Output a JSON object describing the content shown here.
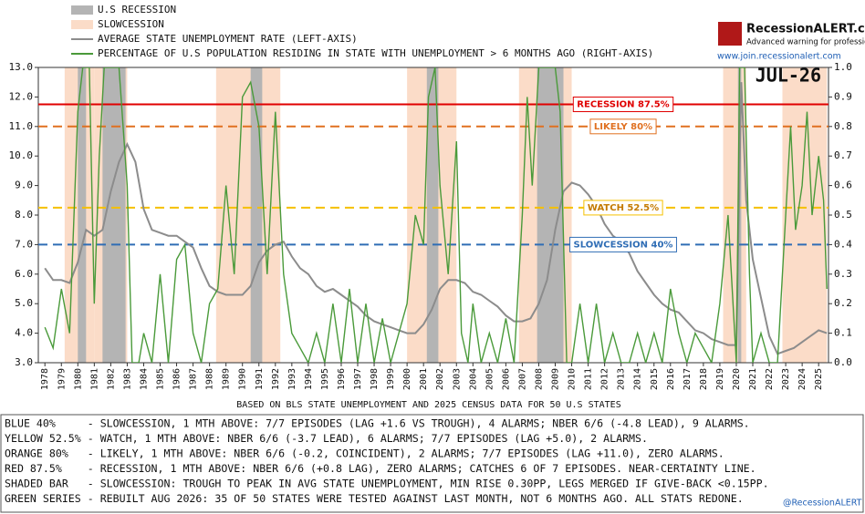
{
  "chart_data": {
    "type": "line",
    "legend": [
      "U.S RECESSION",
      "SLOWCESSION"
    ],
    "logo": {
      "title": "RecessionALERT.com",
      "subtitle": "Advanced warning for professionals",
      "url": "www.join.recessionalert.com"
    },
    "stamp": "JUL-26",
    "footnote": "BASED ON BLS STATE UNEMPLOYMENT AND 2025 CENSUS DATA FOR 50 U.S STATES",
    "notes": [
      "BLUE 40%     - SLOWCESSION, 1 MTH ABOVE: 7/7 EPISODES (LAG +1.6 VS TROUGH), 4 ALARMS; NBER 6/6 (-4.8 LEAD), 9 ALARMS.",
      "YELLOW 52.5% - WATCH, 1 MTH ABOVE: NBER 6/6 (-3.7 LEAD), 6 ALARMS; 7/7 EPISODES (LAG +5.0), 2 ALARMS.",
      "ORANGE 80%   - LIKELY, 1 MTH ABOVE: NBER 6/6 (-0.2, COINCIDENT), 2 ALARMS; 7/7 EPISODES (LAG +11.0), ZERO ALARMS.",
      "RED 87.5%    - RECESSION, 1 MTH ABOVE: NBER 6/6 (+0.8 LAG), ZERO ALARMS; CATCHES 6 OF 7 EPISODES. NEAR-CERTAINTY LINE.",
      "SHADED BAR   - SLOWCESSION: TROUGH TO PEAK IN AVG STATE UNEMPLOYMENT, MIN RISE 0.30PP, LEGS MERGED IF GIVE-BACK <0.15PP.",
      "GREEN SERIES - REBUILT AUG 2026: 35 OF 50 STATES WERE TESTED AGAINST LAST MONTH, NOT 6 MONTHS AGO. ALL STATS REDONE."
    ],
    "credit": "@RecessionALERT",
    "recession_color": "#b4b4b4",
    "slowcession_color": "#fbdcc8",
    "recessions": [
      [
        1980.0,
        1980.5
      ],
      [
        1981.5,
        1982.9
      ],
      [
        1990.5,
        1991.2
      ],
      [
        2001.2,
        2001.9
      ],
      [
        2007.9,
        2009.5
      ],
      [
        2020.1,
        2020.3
      ]
    ],
    "slowcessions": [
      [
        1979.2,
        1981.0
      ],
      [
        1981.0,
        1983.0
      ],
      [
        1988.4,
        1992.3
      ],
      [
        2000.0,
        2003.0
      ],
      [
        2006.8,
        2010.0
      ],
      [
        2019.2,
        2020.6
      ],
      [
        2022.8,
        2025.5
      ]
    ],
    "thresholds": [
      {
        "label": "RECESSION 87.5%",
        "value": 0.875,
        "color": "#e00000",
        "dash": false
      },
      {
        "label": "LIKELY 80%",
        "value": 0.8,
        "color": "#e07020",
        "dash": true
      },
      {
        "label": "WATCH 52.5%",
        "value": 0.525,
        "color": "#f5c000",
        "dash": true
      },
      {
        "label": "SLOWCESSION 40%",
        "value": 0.4,
        "color": "#2f6db5",
        "dash": true
      }
    ],
    "series": [
      {
        "name": "AVERAGE STATE UNEMPLOYMENT RATE (LEFT-AXIS)",
        "color": "#8c8c8c",
        "axis": "y",
        "x": [
          1978.0,
          1978.5,
          1979.0,
          1979.5,
          1980.0,
          1980.5,
          1981.0,
          1981.5,
          1982.0,
          1982.5,
          1983.0,
          1983.5,
          1984.0,
          1984.5,
          1985.0,
          1985.5,
          1986.0,
          1986.5,
          1987.0,
          1987.5,
          1988.0,
          1988.5,
          1989.0,
          1989.5,
          1990.0,
          1990.5,
          1991.0,
          1991.5,
          1992.0,
          1992.5,
          1993.0,
          1993.5,
          1994.0,
          1994.5,
          1995.0,
          1995.5,
          1996.0,
          1996.5,
          1997.0,
          1997.5,
          1998.0,
          1998.5,
          1999.0,
          1999.5,
          2000.0,
          2000.5,
          2001.0,
          2001.5,
          2002.0,
          2002.5,
          2003.0,
          2003.5,
          2004.0,
          2004.5,
          2005.0,
          2005.5,
          2006.0,
          2006.5,
          2007.0,
          2007.5,
          2008.0,
          2008.5,
          2009.0,
          2009.5,
          2010.0,
          2010.5,
          2011.0,
          2011.5,
          2012.0,
          2012.5,
          2013.0,
          2013.5,
          2014.0,
          2014.5,
          2015.0,
          2015.5,
          2016.0,
          2016.5,
          2017.0,
          2017.5,
          2018.0,
          2018.5,
          2019.0,
          2019.5,
          2020.0,
          2020.3,
          2020.6,
          2021.0,
          2021.5,
          2022.0,
          2022.5,
          2023.0,
          2023.5,
          2024.0,
          2024.5,
          2025.0,
          2025.5
        ],
        "values": [
          6.2,
          5.8,
          5.8,
          5.7,
          6.4,
          7.5,
          7.3,
          7.5,
          8.8,
          9.8,
          10.4,
          9.8,
          8.2,
          7.5,
          7.4,
          7.3,
          7.3,
          7.1,
          6.9,
          6.2,
          5.6,
          5.4,
          5.3,
          5.3,
          5.3,
          5.6,
          6.4,
          6.8,
          7.0,
          7.1,
          6.6,
          6.2,
          6.0,
          5.6,
          5.4,
          5.5,
          5.3,
          5.1,
          4.9,
          4.6,
          4.4,
          4.3,
          4.2,
          4.1,
          4.0,
          4.0,
          4.3,
          4.8,
          5.5,
          5.8,
          5.8,
          5.7,
          5.4,
          5.3,
          5.1,
          4.9,
          4.6,
          4.4,
          4.4,
          4.5,
          5.0,
          5.8,
          7.5,
          8.8,
          9.1,
          9.0,
          8.7,
          8.3,
          7.7,
          7.3,
          7.1,
          6.7,
          6.1,
          5.7,
          5.3,
          5.0,
          4.8,
          4.7,
          4.4,
          4.1,
          4.0,
          3.8,
          3.7,
          3.6,
          3.6,
          12.5,
          8.5,
          6.5,
          5.2,
          3.9,
          3.3,
          3.4,
          3.5,
          3.7,
          3.9,
          4.1,
          4.0
        ]
      },
      {
        "name": "PERCENTAGE OF U.S POPULATION RESIDING IN STATE WITH UNEMPLOYMENT > 6 MONTHS AGO (RIGHT-AXIS)",
        "color": "#4a9a3a",
        "axis": "y2",
        "x": [
          1978.0,
          1978.5,
          1979.0,
          1979.5,
          1980.0,
          1980.3,
          1980.7,
          1981.0,
          1981.3,
          1981.6,
          1982.0,
          1982.5,
          1983.0,
          1983.3,
          1983.7,
          1984.0,
          1984.5,
          1985.0,
          1985.5,
          1986.0,
          1986.5,
          1987.0,
          1987.5,
          1988.0,
          1988.5,
          1989.0,
          1989.5,
          1990.0,
          1990.5,
          1991.0,
          1991.5,
          1992.0,
          1992.5,
          1993.0,
          1993.5,
          1994.0,
          1994.5,
          1995.0,
          1995.5,
          1996.0,
          1996.5,
          1997.0,
          1997.5,
          1998.0,
          1998.5,
          1999.0,
          1999.5,
          2000.0,
          2000.5,
          2001.0,
          2001.3,
          2001.7,
          2002.0,
          2002.5,
          2003.0,
          2003.3,
          2003.7,
          2004.0,
          2004.5,
          2005.0,
          2005.5,
          2006.0,
          2006.5,
          2007.0,
          2007.3,
          2007.6,
          2008.0,
          2008.5,
          2009.0,
          2009.3,
          2009.7,
          2010.0,
          2010.5,
          2011.0,
          2011.5,
          2012.0,
          2012.5,
          2013.0,
          2013.5,
          2014.0,
          2014.5,
          2015.0,
          2015.5,
          2016.0,
          2016.5,
          2017.0,
          2017.5,
          2018.0,
          2018.5,
          2019.0,
          2019.5,
          2020.0,
          2020.2,
          2020.5,
          2020.8,
          2021.0,
          2021.5,
          2022.0,
          2022.5,
          2023.0,
          2023.3,
          2023.6,
          2024.0,
          2024.3,
          2024.6,
          2025.0,
          2025.3,
          2025.5
        ],
        "values": [
          0.12,
          0.05,
          0.25,
          0.1,
          0.85,
          1.0,
          1.0,
          0.2,
          0.7,
          1.0,
          1.0,
          1.0,
          0.6,
          0.0,
          0.0,
          0.1,
          0.0,
          0.3,
          0.0,
          0.35,
          0.4,
          0.1,
          0.0,
          0.2,
          0.25,
          0.6,
          0.3,
          0.9,
          0.95,
          0.8,
          0.3,
          0.85,
          0.3,
          0.1,
          0.05,
          0.0,
          0.1,
          0.0,
          0.2,
          0.0,
          0.25,
          0.0,
          0.2,
          0.0,
          0.15,
          0.0,
          0.1,
          0.2,
          0.5,
          0.4,
          0.9,
          1.0,
          0.6,
          0.3,
          0.75,
          0.1,
          0.0,
          0.2,
          0.0,
          0.1,
          0.0,
          0.15,
          0.0,
          0.5,
          0.9,
          0.6,
          1.0,
          1.0,
          1.0,
          0.85,
          0.0,
          0.0,
          0.2,
          0.0,
          0.2,
          0.0,
          0.1,
          0.0,
          0.0,
          0.1,
          0.0,
          0.1,
          0.0,
          0.25,
          0.1,
          0.0,
          0.1,
          0.05,
          0.0,
          0.2,
          0.5,
          0.0,
          1.0,
          1.0,
          0.3,
          0.0,
          0.1,
          0.0,
          0.0,
          0.5,
          0.8,
          0.45,
          0.6,
          0.85,
          0.5,
          0.7,
          0.55,
          0.25
        ]
      }
    ],
    "xlim": [
      1977.6,
      2025.6
    ],
    "xticks": [
      1978,
      1979,
      1980,
      1981,
      1982,
      1983,
      1984,
      1985,
      1986,
      1987,
      1988,
      1989,
      1990,
      1991,
      1992,
      1993,
      1994,
      1995,
      1996,
      1997,
      1998,
      1999,
      2000,
      2001,
      2002,
      2003,
      2004,
      2005,
      2006,
      2007,
      2008,
      2009,
      2010,
      2011,
      2012,
      2013,
      2014,
      2015,
      2016,
      2017,
      2018,
      2019,
      2020,
      2021,
      2022,
      2023,
      2024,
      2025
    ],
    "ylim": [
      3,
      13
    ],
    "yticks": [
      {
        "value": 3,
        "label": "3.0"
      },
      {
        "value": 4,
        "label": "4.0"
      },
      {
        "value": 5,
        "label": "5.0"
      },
      {
        "value": 6,
        "label": "6.0"
      },
      {
        "value": 7,
        "label": "7.0"
      },
      {
        "value": 8,
        "label": "8.0"
      },
      {
        "value": 9,
        "label": "9.0"
      },
      {
        "value": 10,
        "label": "10.0"
      },
      {
        "value": 11,
        "label": "11.0"
      },
      {
        "value": 12,
        "label": "12.0"
      },
      {
        "value": 13,
        "label": "13.0"
      }
    ],
    "y2lim": [
      0,
      1
    ],
    "y2ticks": [
      {
        "value": 0,
        "label": "0.0"
      },
      0.1,
      0.2,
      0.3,
      0.4,
      0.5,
      0.6,
      0.7,
      0.8,
      0.9,
      {
        "value": 1,
        "label": "1.0"
      }
    ],
    "grid": false
  }
}
